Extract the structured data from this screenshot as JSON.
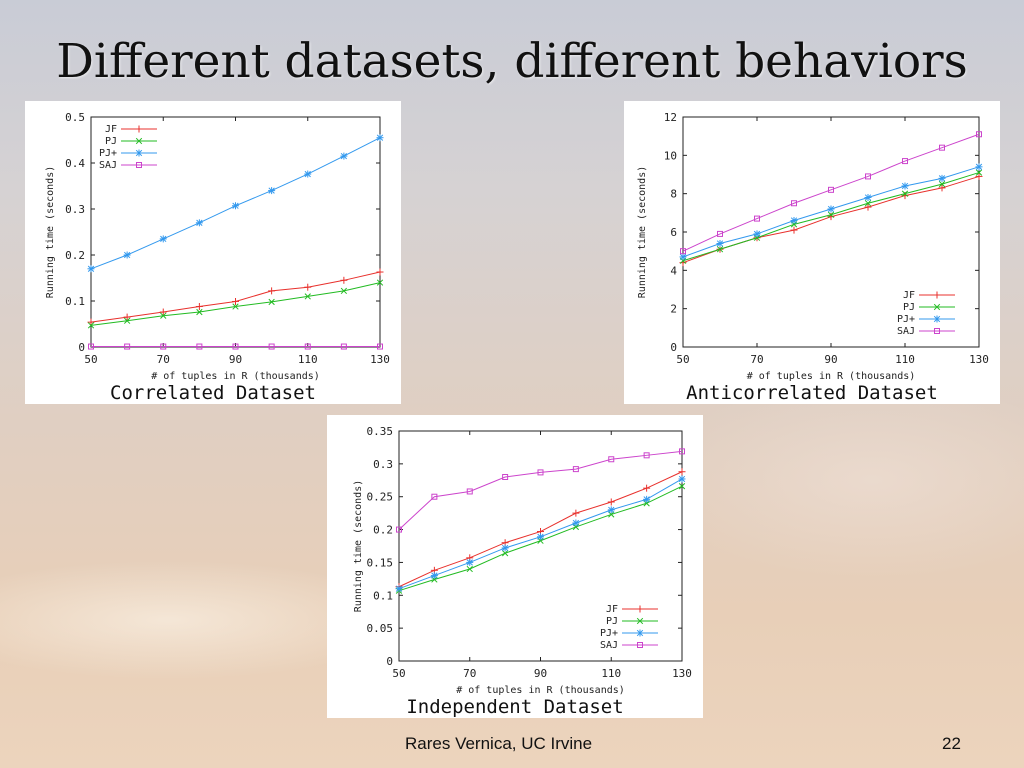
{
  "slide": {
    "title": "Different datasets, different behaviors",
    "author": "Rares Vernica, UC Irvine",
    "page_number": "22"
  },
  "colors": {
    "JF": "#e8302c",
    "PJ": "#22bb22",
    "PJ+": "#3399ee",
    "SAJ": "#cc44cc"
  },
  "chart_data": [
    {
      "type": "line",
      "caption": "Correlated Dataset",
      "xlabel": "# of tuples in R (thousands)",
      "ylabel": "Running time (seconds)",
      "x": [
        50,
        60,
        70,
        80,
        90,
        100,
        110,
        120,
        130
      ],
      "xlim": [
        50,
        130
      ],
      "ylim": [
        0,
        0.5
      ],
      "xticks": [
        50,
        70,
        90,
        110,
        130
      ],
      "yticks": [
        0,
        0.1,
        0.2,
        0.3,
        0.4,
        0.5
      ],
      "ytick_labels": [
        "0",
        "0.1",
        "0.2",
        "0.3",
        "0.4",
        "0.5"
      ],
      "legend": "top-left",
      "series": [
        {
          "name": "JF",
          "marker": "+",
          "values": [
            0.054,
            0.065,
            0.076,
            0.088,
            0.099,
            0.122,
            0.13,
            0.145,
            0.163
          ]
        },
        {
          "name": "PJ",
          "marker": "x",
          "values": [
            0.047,
            0.057,
            0.068,
            0.076,
            0.088,
            0.098,
            0.11,
            0.122,
            0.14
          ]
        },
        {
          "name": "PJ+",
          "marker": "*",
          "values": [
            0.17,
            0.2,
            0.235,
            0.27,
            0.307,
            0.34,
            0.376,
            0.415,
            0.455
          ]
        },
        {
          "name": "SAJ",
          "marker": "square",
          "values": [
            0.001,
            0.001,
            0.001,
            0.001,
            0.001,
            0.001,
            0.001,
            0.001,
            0.001
          ]
        }
      ]
    },
    {
      "type": "line",
      "caption": "Anticorrelated Dataset",
      "xlabel": "# of tuples in R (thousands)",
      "ylabel": "Running time (seconds)",
      "x": [
        50,
        60,
        70,
        80,
        90,
        100,
        110,
        120,
        130
      ],
      "xlim": [
        50,
        130
      ],
      "ylim": [
        0,
        12
      ],
      "xticks": [
        50,
        70,
        90,
        110,
        130
      ],
      "yticks": [
        0,
        2,
        4,
        6,
        8,
        10,
        12
      ],
      "ytick_labels": [
        "0",
        "2",
        "4",
        "6",
        "8",
        "10",
        "12"
      ],
      "legend": "bottom-right",
      "series": [
        {
          "name": "JF",
          "marker": "+",
          "values": [
            4.4,
            5.1,
            5.7,
            6.1,
            6.8,
            7.3,
            7.9,
            8.3,
            8.9
          ]
        },
        {
          "name": "PJ",
          "marker": "x",
          "values": [
            4.5,
            5.1,
            5.7,
            6.4,
            6.9,
            7.5,
            8.0,
            8.5,
            9.1
          ]
        },
        {
          "name": "PJ+",
          "marker": "*",
          "values": [
            4.7,
            5.4,
            5.9,
            6.6,
            7.2,
            7.8,
            8.4,
            8.8,
            9.4
          ]
        },
        {
          "name": "SAJ",
          "marker": "square",
          "values": [
            5.0,
            5.9,
            6.7,
            7.5,
            8.2,
            8.9,
            9.7,
            10.4,
            11.1
          ]
        }
      ]
    },
    {
      "type": "line",
      "caption": "Independent Dataset",
      "xlabel": "# of tuples in R (thousands)",
      "ylabel": "Running time (seconds)",
      "x": [
        50,
        60,
        70,
        80,
        90,
        100,
        110,
        120,
        130
      ],
      "xlim": [
        50,
        130
      ],
      "ylim": [
        0,
        0.35
      ],
      "xticks": [
        50,
        70,
        90,
        110,
        130
      ],
      "yticks": [
        0,
        0.05,
        0.1,
        0.15,
        0.2,
        0.25,
        0.3,
        0.35
      ],
      "ytick_labels": [
        "0",
        "0.05",
        "0.1",
        "0.15",
        "0.2",
        "0.25",
        "0.3",
        "0.35"
      ],
      "legend": "bottom-right",
      "series": [
        {
          "name": "JF",
          "marker": "+",
          "values": [
            0.113,
            0.138,
            0.157,
            0.18,
            0.197,
            0.225,
            0.242,
            0.263,
            0.288
          ]
        },
        {
          "name": "PJ",
          "marker": "x",
          "values": [
            0.107,
            0.124,
            0.14,
            0.164,
            0.183,
            0.204,
            0.223,
            0.24,
            0.266
          ]
        },
        {
          "name": "PJ+",
          "marker": "*",
          "values": [
            0.11,
            0.13,
            0.15,
            0.172,
            0.189,
            0.21,
            0.23,
            0.246,
            0.277
          ]
        },
        {
          "name": "SAJ",
          "marker": "square",
          "values": [
            0.2,
            0.25,
            0.258,
            0.28,
            0.287,
            0.292,
            0.307,
            0.313,
            0.319
          ]
        }
      ]
    }
  ]
}
